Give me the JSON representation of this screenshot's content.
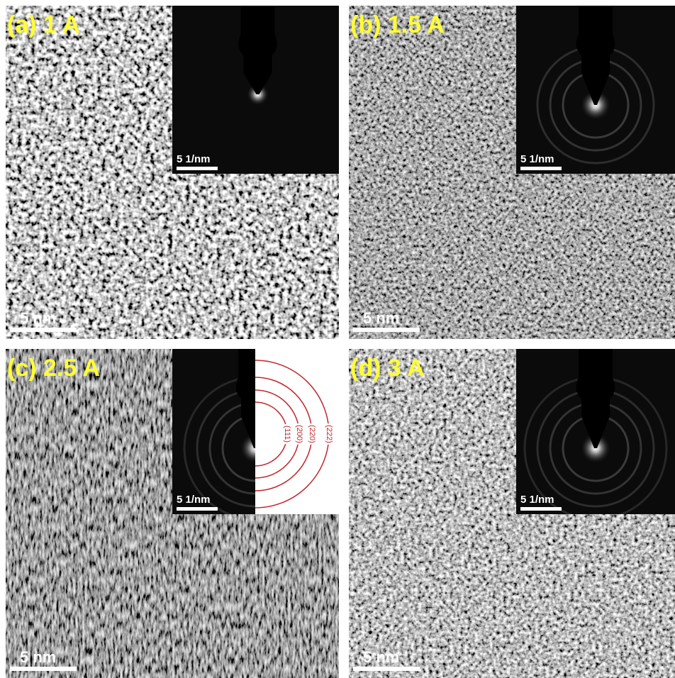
{
  "panels": [
    {
      "label": "(a) 1 A",
      "scale_bar": "5 nm",
      "inset_scale_bar": "5 1/nm"
    },
    {
      "label": "(b) 1.5 A",
      "scale_bar": "5 nm",
      "inset_scale_bar": "5 1/nm"
    },
    {
      "label": "(c) 2.5 A",
      "scale_bar": "5 nm",
      "inset_scale_bar": "5 1/nm"
    },
    {
      "label": "(d) 3 A",
      "scale_bar": "5 nm",
      "inset_scale_bar": "5 1/nm"
    }
  ],
  "ring_labels": [
    "(111)",
    "(200)",
    "(220)",
    "(222)"
  ]
}
